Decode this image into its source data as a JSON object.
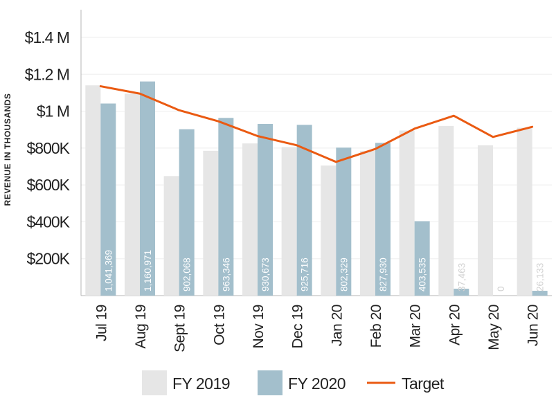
{
  "chart_data": {
    "type": "bar",
    "ylabel": "REVENUE IN THOUSANDS",
    "ylim": [
      0,
      1550000
    ],
    "yticks": [
      {
        "value": 200000,
        "label": "$200K"
      },
      {
        "value": 400000,
        "label": "$400K"
      },
      {
        "value": 600000,
        "label": "$600K"
      },
      {
        "value": 800000,
        "label": "$800K"
      },
      {
        "value": 1000000,
        "label": "$1 M"
      },
      {
        "value": 1200000,
        "label": "$1.2 M"
      },
      {
        "value": 1400000,
        "label": "$1.4 M"
      }
    ],
    "categories": [
      "Jul 19",
      "Aug 19",
      "Sept 19",
      "Oct 19",
      "Nov 19",
      "Dec 19",
      "Jan 20",
      "Feb 20",
      "Mar 20",
      "Apr 20",
      "May 20",
      "Jun 20"
    ],
    "series": [
      {
        "name": "FY 2019",
        "kind": "bar",
        "color": "#e6e6e6",
        "values": [
          1140000,
          1095000,
          648000,
          785000,
          825000,
          805000,
          705000,
          785000,
          895000,
          920000,
          815000,
          910000
        ]
      },
      {
        "name": "FY 2020",
        "kind": "bar",
        "color": "#a3bfcc",
        "values": [
          1041369,
          1160971,
          902068,
          963346,
          930673,
          925716,
          802329,
          827930,
          403535,
          37463,
          0,
          26133
        ],
        "labels": [
          "1,041,369",
          "1,160,971",
          "902,068",
          "963,346",
          "930,673",
          "925,716",
          "802,329",
          "827,930",
          "403,535",
          "37,463",
          "0",
          "26,133"
        ]
      },
      {
        "name": "Target",
        "kind": "line",
        "color": "#ea5a12",
        "values": [
          1135000,
          1095000,
          1005000,
          945000,
          865000,
          815000,
          725000,
          795000,
          905000,
          975000,
          860000,
          915000
        ]
      }
    ],
    "grid": true,
    "legend": "bottom-center"
  }
}
